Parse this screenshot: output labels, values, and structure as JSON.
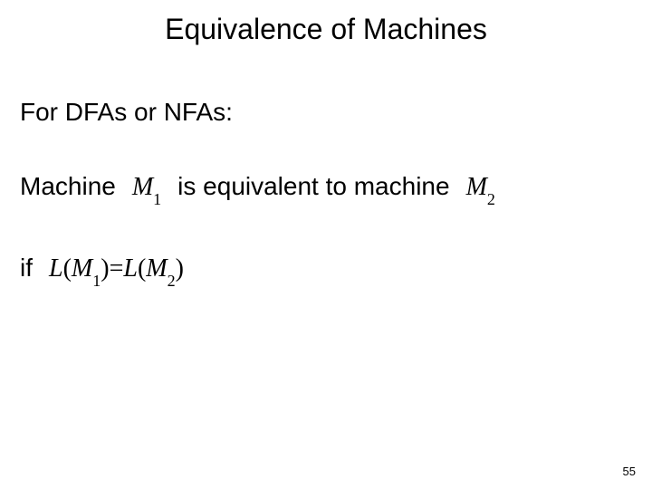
{
  "slide": {
    "title": "Equivalence of Machines",
    "subheading": "For DFAs or NFAs:",
    "sentence": {
      "part1": "Machine",
      "m1_letter": "M",
      "m1_sub": "1",
      "part2": "is equivalent to machine",
      "m2_letter": "M",
      "m2_sub": "2"
    },
    "condition": {
      "if_text": "if",
      "L": "L",
      "open1": "(",
      "M1_letter": "M",
      "M1_sub": "1",
      "close1": ")",
      "eq": "=",
      "open2": "(",
      "M2_letter": "M",
      "M2_sub": "2",
      "close2": ")"
    },
    "page_number": "55"
  },
  "style": {
    "background_color": "#ffffff",
    "text_color": "#000000",
    "title_fontsize": 32,
    "body_fontsize": 28,
    "math_sub_fontsize": 18,
    "pagenum_fontsize": 13,
    "body_font": "Comic Sans MS",
    "math_font": "Times New Roman"
  }
}
